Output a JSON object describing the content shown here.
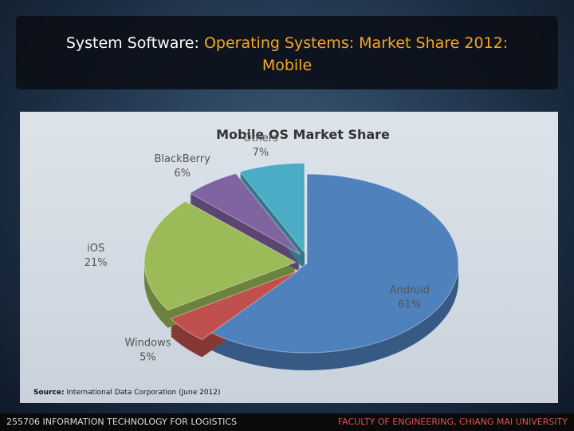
{
  "slide": {
    "title_parts": [
      "System Software: ",
      "Operating Systems: Market Share 2012: Mobile"
    ],
    "footer_left": "255706 INFORMATION TECHNOLOGY FOR LOGISTICS",
    "footer_right": "FACULTY OF ENGINEERING, CHIANG MAI UNIVERSITY"
  },
  "source": {
    "label": "Source:",
    "text": "International Data Corporation (June 2012)"
  },
  "chart_data": {
    "type": "pie",
    "title": "Mobile OS Market Share",
    "categories": [
      "Android",
      "Windows",
      "iOS",
      "BlackBerry",
      "Others"
    ],
    "values": [
      61,
      5,
      21,
      6,
      7
    ],
    "value_labels": [
      "61%",
      "5%",
      "21%",
      "6%",
      "7%"
    ],
    "colors": [
      "#4f81bd",
      "#c0504d",
      "#9bbb59",
      "#8064a2",
      "#4bacc6"
    ]
  }
}
